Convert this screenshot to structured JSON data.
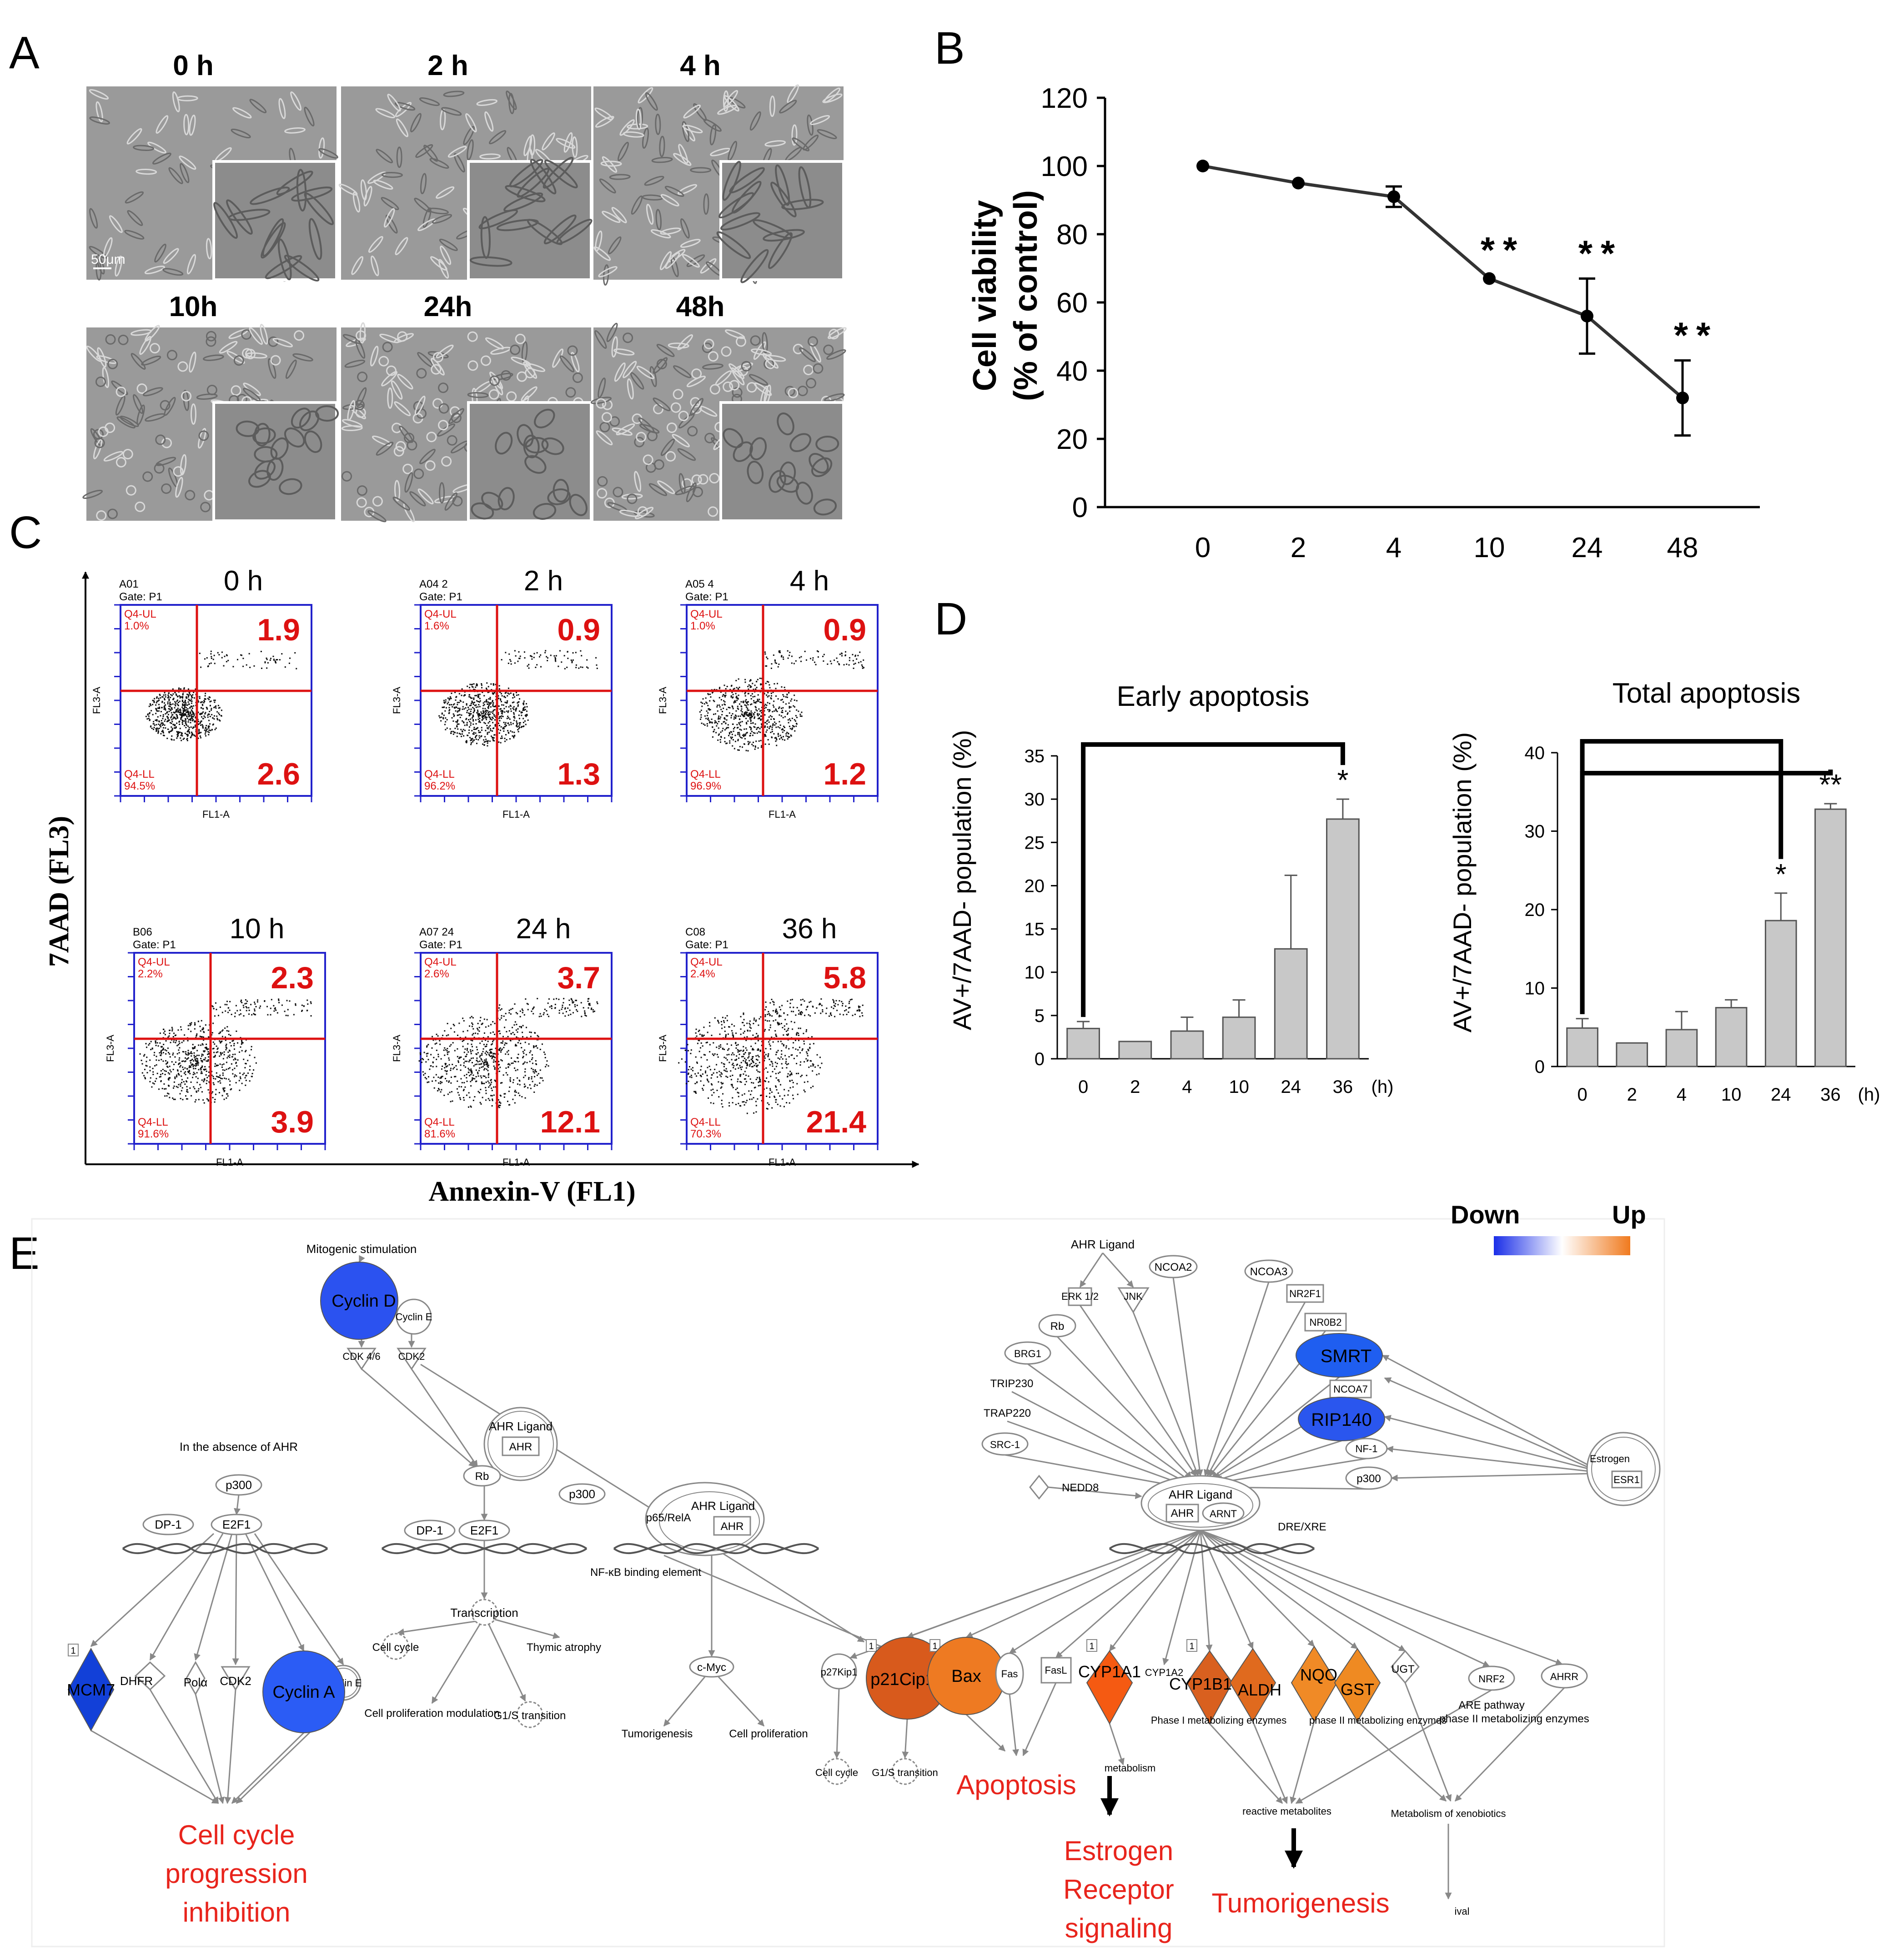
{
  "panel_letters": {
    "a": "A",
    "b": "B",
    "c": "C",
    "d": "D",
    "e": "E"
  },
  "panel_a": {
    "scale_bar": "50μm",
    "micrographs": [
      {
        "label": "0 h"
      },
      {
        "label": "2 h"
      },
      {
        "label": "4 h"
      },
      {
        "label": "10h"
      },
      {
        "label": "24h"
      },
      {
        "label": "48h"
      }
    ]
  },
  "panel_c": {
    "y_axis_label": "7AAD (FL3)",
    "x_axis_label": "Annexin-V (FL1)",
    "plots": [
      {
        "time": "0 h",
        "sample": "A01",
        "gate": "Gate: P1",
        "ul_name": "Q4-UL",
        "ul_pct": "1.0%",
        "ll_name": "Q4-LL",
        "ll_pct": "94.5%",
        "ur_value": "1.9",
        "lr_value": "2.6",
        "x_axis": "FL1-A",
        "y_axis": "FL3-A"
      },
      {
        "time": "2 h",
        "sample": "A04 2",
        "gate": "Gate: P1",
        "ul_name": "Q4-UL",
        "ul_pct": "1.6%",
        "ll_name": "Q4-LL",
        "ll_pct": "96.2%",
        "ur_value": "0.9",
        "lr_value": "1.3",
        "x_axis": "FL1-A",
        "y_axis": "FL3-A"
      },
      {
        "time": "4 h",
        "sample": "A05 4",
        "gate": "Gate: P1",
        "ul_name": "Q4-UL",
        "ul_pct": "1.0%",
        "ll_name": "Q4-LL",
        "ll_pct": "96.9%",
        "ur_value": "0.9",
        "lr_value": "1.2",
        "x_axis": "FL1-A",
        "y_axis": "FL3-A"
      },
      {
        "time": "10 h",
        "sample": "B06",
        "gate": "Gate: P1",
        "ul_name": "Q4-UL",
        "ul_pct": "2.2%",
        "ll_name": "Q4-LL",
        "ll_pct": "91.6%",
        "ur_value": "2.3",
        "lr_value": "3.9",
        "x_axis": "FL1-A",
        "y_axis": "FL3-A"
      },
      {
        "time": "24 h",
        "sample": "A07 24",
        "gate": "Gate: P1",
        "ul_name": "Q4-UL",
        "ul_pct": "2.6%",
        "ll_name": "Q4-LL",
        "ll_pct": "81.6%",
        "ur_value": "3.7",
        "lr_value": "12.1",
        "x_axis": "FL1-A",
        "y_axis": "FL3-A"
      },
      {
        "time": "36 h",
        "sample": "C08",
        "gate": "Gate: P1",
        "ul_name": "Q4-UL",
        "ul_pct": "2.4%",
        "ll_name": "Q4-LL",
        "ll_pct": "70.3%",
        "ur_value": "5.8",
        "lr_value": "21.4",
        "x_axis": "FL1-A",
        "y_axis": "FL3-A"
      }
    ]
  },
  "chart_data": [
    {
      "panel": "B",
      "type": "line",
      "x": [
        "0",
        "2",
        "4",
        "10",
        "24",
        "48"
      ],
      "series": [
        {
          "values": [
            100,
            95,
            91,
            67,
            56,
            32
          ],
          "error": [
            1,
            1,
            3,
            1,
            11,
            11
          ]
        }
      ],
      "significance": [
        "",
        "",
        "",
        "**",
        "**",
        "**"
      ],
      "ylabel_line1": "Cell viability",
      "ylabel_line2": "(% of control)",
      "ylim": [
        0,
        120
      ],
      "yticks": [
        0,
        20,
        40,
        60,
        80,
        100,
        120
      ],
      "grid": false
    },
    {
      "panel": "D",
      "type": "bar",
      "title": "Early apoptosis",
      "ylabel": "AV+/7AAD- population (%)",
      "unit": "(h)",
      "categories": [
        "0",
        "2",
        "4",
        "10",
        "24",
        "36"
      ],
      "values": [
        3.5,
        2.0,
        3.2,
        4.8,
        12.7,
        27.7
      ],
      "error": [
        0.8,
        0,
        1.6,
        2.0,
        8.5,
        2.3
      ],
      "significance": [
        "",
        "",
        "",
        "",
        "",
        "*"
      ],
      "comparisons": [
        [
          0,
          5
        ]
      ],
      "ylim": [
        0,
        35
      ],
      "yticks": [
        0,
        5,
        10,
        15,
        20,
        25,
        30,
        35
      ],
      "bar_color": "#c8c8c8"
    },
    {
      "panel": "D",
      "type": "bar",
      "title": "Total apoptosis",
      "ylabel": "AV+/7AAD- population (%)",
      "unit": "(h)",
      "categories": [
        "0",
        "2",
        "4",
        "10",
        "24",
        "36"
      ],
      "values": [
        4.9,
        3.0,
        4.7,
        7.5,
        18.6,
        32.8
      ],
      "error": [
        1.2,
        0,
        2.3,
        1.0,
        3.5,
        0.7
      ],
      "significance": [
        "",
        "",
        "",
        "",
        "*",
        "**"
      ],
      "comparisons": [
        [
          0,
          4
        ],
        [
          0,
          5
        ]
      ],
      "ylim": [
        0,
        40
      ],
      "yticks": [
        0,
        10,
        20,
        30,
        40
      ],
      "bar_color": "#c8c8c8"
    }
  ],
  "panel_e": {
    "legend": {
      "down": "Down",
      "up": "Up",
      "down_color": "#1a2ee8",
      "up_color": "#f07a1e"
    },
    "left": {
      "title": "In the absence of AHR",
      "nodes": {
        "p300": "p300",
        "dp1": "DP-1",
        "e2f1": "E2F1",
        "dhfr": "DHFR",
        "pola": "Polα",
        "cdk2": "CDK2",
        "cyclin_e": "Cyclin E"
      },
      "mcm7": "MCM7",
      "cyclin_a": "Cyclin A",
      "box_tag": "1",
      "outcome": [
        "Cell cycle",
        "progression",
        "inhibition"
      ]
    },
    "middle": {
      "mitogenic": "Mitogenic stimulation",
      "cyclin_d": "Cyclin D",
      "cyclin_e": "Cyclin E",
      "cdk46": "CDK 4/6",
      "cdk2": "CDK2",
      "ahr_ligand": "AHR Ligand",
      "ahr": "AHR",
      "rb": "Rb",
      "p300": "p300",
      "dp1": "DP-1",
      "e2f1": "E2F1",
      "transcription": "Transcription",
      "cell_cycle": "Cell cycle",
      "thymic": "Thymic atrophy",
      "cell_prolif_mod": "Cell proliferation modulation",
      "g1s": "G1/S transition",
      "p65": "p65/RelA",
      "nfkb": "NF-κB binding element",
      "ahr_ligand2": "AHR Ligand",
      "ahr2": "AHR",
      "cmyc": "c-Myc",
      "tumorigenesis": "Tumorigenesis",
      "cell_proliferation": "Cell proliferation"
    },
    "right": {
      "ahr_ligand_top": "AHR Ligand",
      "erk": "ERK 1/2",
      "jnk": "JNK",
      "ncoa2": "NCOA2",
      "ncoa3": "NCOA3",
      "nr2f1": "NR2F1",
      "nr0b2": "NR0B2",
      "smrt": "SMRT",
      "ncoa7": "NCOA7",
      "rip140": "RIP140",
      "nf1": "NF-1",
      "p300": "p300",
      "rb": "Rb",
      "brg1": "BRG1",
      "trip230": "TRIP230",
      "trap220": "TRAP220",
      "src1": "SRC-1",
      "nedd8": "NEDD8",
      "estrogen": "Estrogen",
      "esr1": "ESR1",
      "complex_ligand": "AHR Ligand",
      "complex_ahr": "AHR",
      "complex_arnt": "ARNT",
      "dre": "DRE/XRE",
      "p27": "p27Kip1",
      "p21": "p21Cip1",
      "bax": "Bax",
      "fas": "Fas",
      "fasl": "FasL",
      "cyp1a1": "CYP1A1",
      "cyp1a2": "CYP1A2",
      "cyp1b1": "CYP1B1",
      "aldh": "ALDH",
      "nqo": "NQO",
      "gst": "GST",
      "ugt": "UGT",
      "nrf2": "NRF2",
      "ahrr": "AHRR",
      "phase1": "Phase I metabolizing enzymes",
      "phase2": "phase II metabolizing enzymes",
      "are": "ARE pathway",
      "are_phase2": "phase II metabolizing enzymes",
      "cell_cycle": "Cell cycle",
      "g1s": "G1/S transition",
      "metabolism": "metabolism",
      "reactive": "reactive metabolites",
      "xeno": "Metabolism of xenobiotics",
      "survival": "ival",
      "box_tag": "1",
      "apoptosis": "Apoptosis",
      "estrogen_outcome": [
        "Estrogen",
        "Receptor",
        "signaling"
      ],
      "tumorigenesis": "Tumorigenesis"
    },
    "colors": {
      "cyclin_d": "#2b52f0",
      "cyclin_a": "#2b5cf5",
      "mcm7": "#1240d8",
      "smrt": "#1f5ef0",
      "rip140": "#2a56ee",
      "p21": "#d85a1c",
      "bax": "#ee7a22",
      "cyp1a1": "#f55a12",
      "cyp1b1": "#d9601f",
      "aldh": "#e06a1e",
      "nqo": "#f08a26",
      "gst": "#ef8a22",
      "annotation_red": "#e8241c"
    }
  }
}
